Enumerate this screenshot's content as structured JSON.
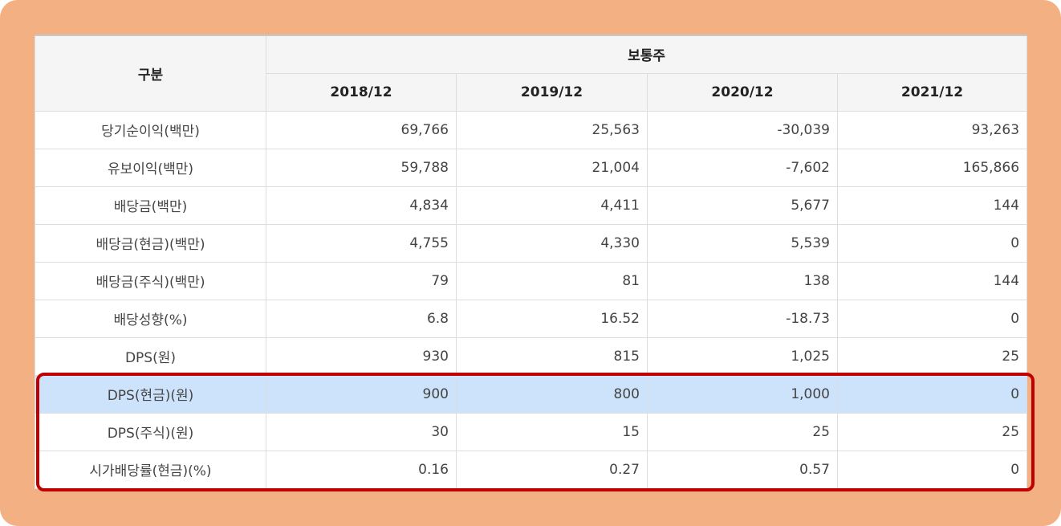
{
  "table": {
    "header": {
      "category_label": "구분",
      "group_label": "보통주",
      "years": [
        "2018/12",
        "2019/12",
        "2020/12",
        "2021/12"
      ]
    },
    "rows": [
      {
        "label": "당기순이익(백만)",
        "values": [
          "69,766",
          "25,563",
          "-30,039",
          "93,263"
        ]
      },
      {
        "label": "유보이익(백만)",
        "values": [
          "59,788",
          "21,004",
          "-7,602",
          "165,866"
        ]
      },
      {
        "label": "배당금(백만)",
        "values": [
          "4,834",
          "4,411",
          "5,677",
          "144"
        ]
      },
      {
        "label": "배당금(현금)(백만)",
        "values": [
          "4,755",
          "4,330",
          "5,539",
          "0"
        ]
      },
      {
        "label": "배당금(주식)(백만)",
        "values": [
          "79",
          "81",
          "138",
          "144"
        ]
      },
      {
        "label": "배당성향(%)",
        "values": [
          "6.8",
          "16.52",
          "-18.73",
          "0"
        ]
      },
      {
        "label": "DPS(원)",
        "values": [
          "930",
          "815",
          "1,025",
          "25"
        ]
      },
      {
        "label": "DPS(현금)(원)",
        "values": [
          "900",
          "800",
          "1,000",
          "0"
        ]
      },
      {
        "label": "DPS(주식)(원)",
        "values": [
          "30",
          "15",
          "25",
          "25"
        ]
      },
      {
        "label": "시가배당률(현금)(%)",
        "values": [
          "0.16",
          "0.27",
          "0.57",
          "0"
        ]
      }
    ],
    "highlighted_row_index": 7
  },
  "colors": {
    "frame": "#f3b083",
    "highlight_row": "#cde3fb",
    "highlight_border": "#c00000"
  }
}
